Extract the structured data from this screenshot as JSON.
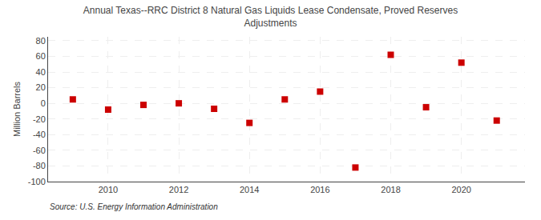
{
  "chart_data": {
    "type": "scatter",
    "title": "Annual Texas--RRC District 8 Natural Gas Liquids Lease Condensate, Proved Reserves\nAdjustments",
    "ylabel": "Million Barrels",
    "annotations": [
      "Source: U.S. Energy Information Administration"
    ],
    "x": [
      2009,
      2010,
      2011,
      2012,
      2013,
      2014,
      2015,
      2016,
      2017,
      2018,
      2019,
      2020,
      2021
    ],
    "values": [
      5,
      -8,
      -2,
      0,
      -7,
      -25,
      5,
      15,
      -82,
      62,
      -5,
      52,
      -22
    ],
    "color": "#cc0000",
    "marker": "square",
    "xlim": [
      2008.3,
      2021.8
    ],
    "xticks": [
      2010,
      2012,
      2014,
      2016,
      2018,
      2020
    ],
    "ylim": [
      -100,
      85
    ],
    "yticks": [
      -100,
      -80,
      -60,
      -40,
      -20,
      0,
      20,
      40,
      60,
      80
    ],
    "grid": true
  }
}
